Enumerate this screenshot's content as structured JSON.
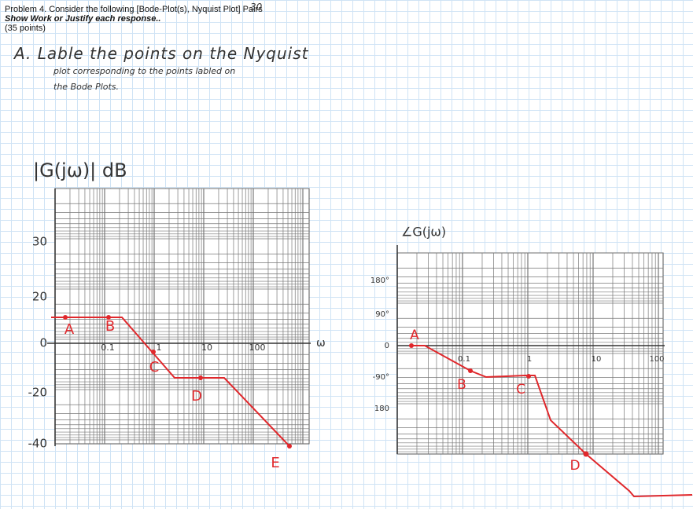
{
  "header": {
    "line1": "Problem 4.  Consider the following [Bode-Plot(s), Nyquist Plot] Pairs",
    "line2": "Show Work or Justify each response..",
    "line3": "(35 points)",
    "score_mark": "30"
  },
  "instructions": {
    "line1": "A.  Lable  the  points  on  the  Nyquist",
    "line2": "plot  corresponding  to  the  points  labled  on",
    "line3": "the  Bode  Plots."
  },
  "magnitude_plot": {
    "title": "|G(jω)| dB",
    "y_labels": [
      "30",
      "20",
      "0",
      "-20",
      "-40"
    ],
    "x_labels": [
      "0.1",
      "1",
      "10",
      "100"
    ],
    "x_axis_label": "ω",
    "points": [
      "A",
      "B",
      "C",
      "D",
      "E"
    ]
  },
  "phase_plot": {
    "title": "∠G(jω)",
    "y_labels": [
      "180°",
      "90°",
      "0",
      "-90°",
      "180"
    ],
    "x_labels": [
      "0.1",
      "1",
      "10",
      "100"
    ],
    "points": [
      "A",
      "B",
      "C",
      "D"
    ]
  }
}
